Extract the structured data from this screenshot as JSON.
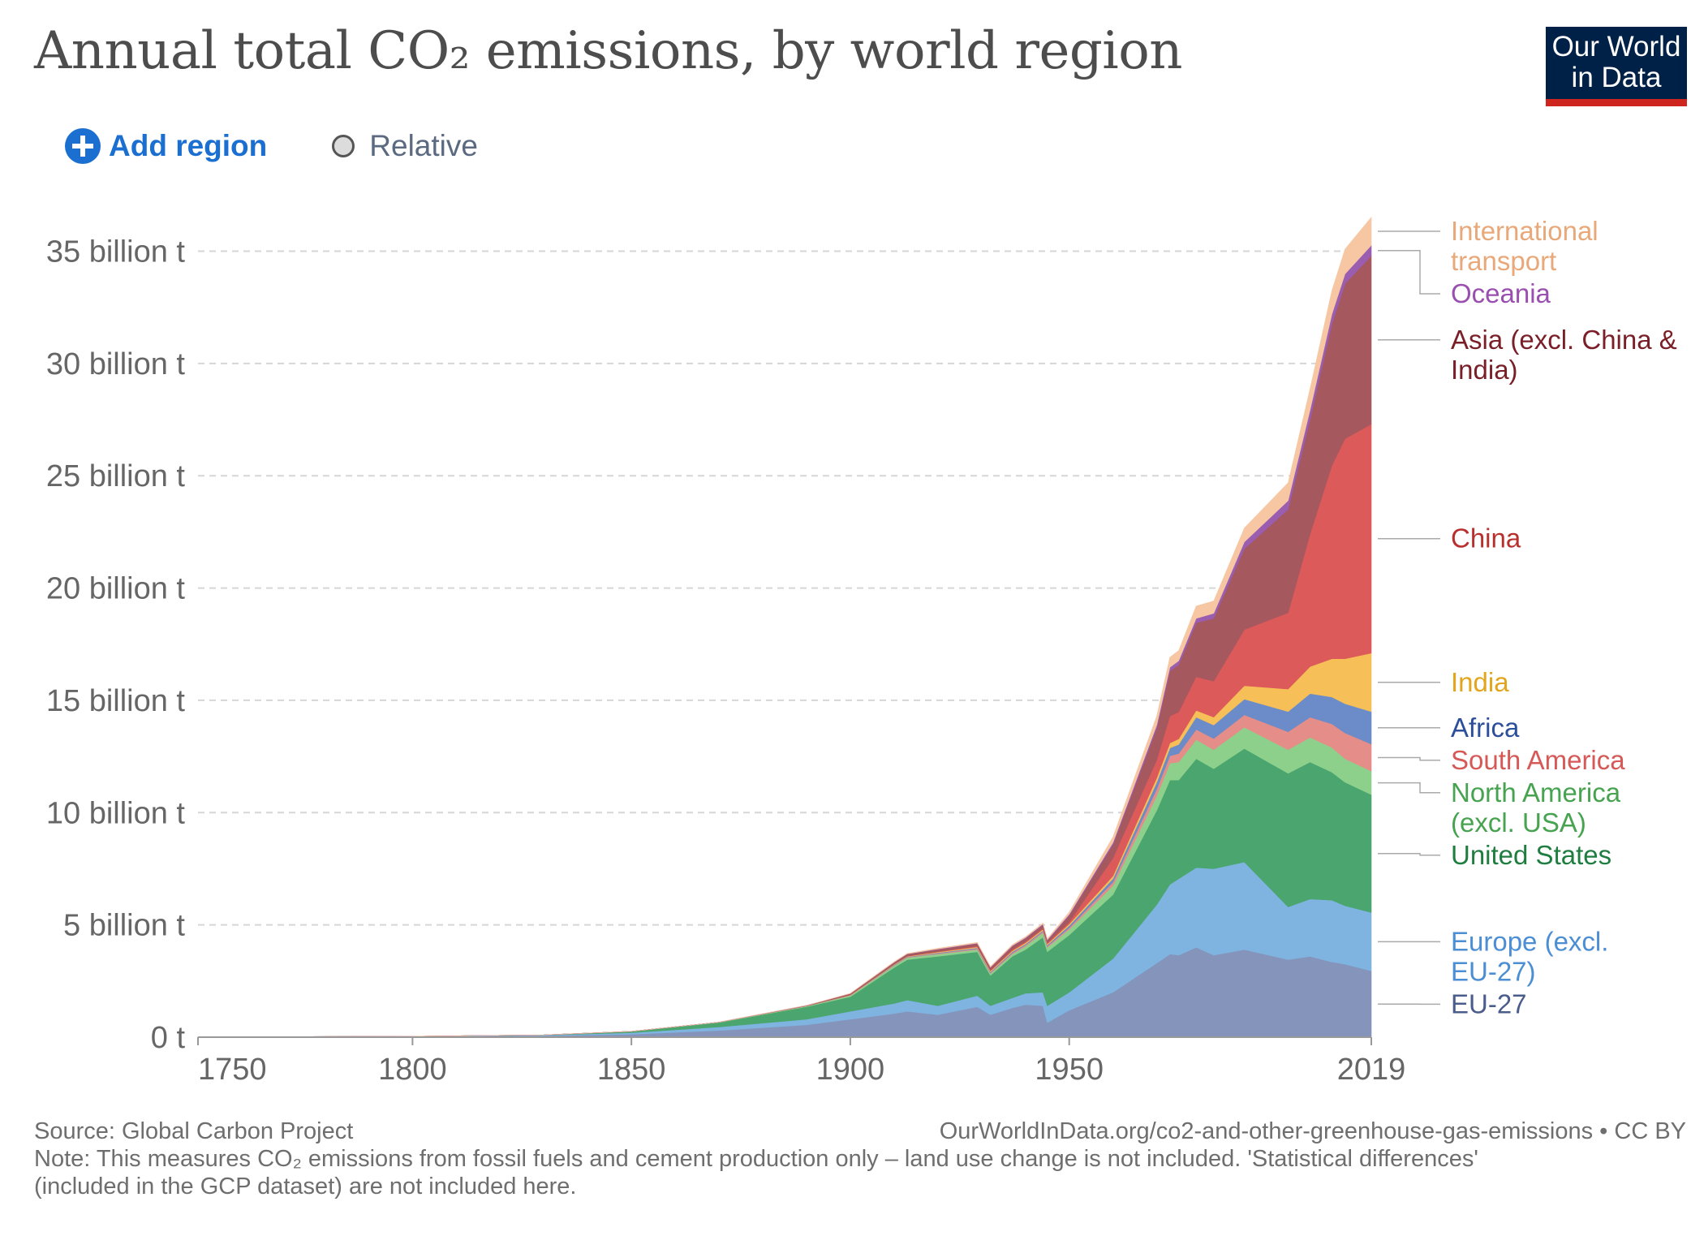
{
  "title": "Annual total CO₂ emissions, by world region",
  "logo": {
    "line1": "Our World",
    "line2": "in Data"
  },
  "controls": {
    "add_region_label": "Add region",
    "relative_label": "Relative"
  },
  "footer": {
    "source": "Source: Global Carbon Project",
    "url": "OurWorldInData.org/co2-and-other-greenhouse-gas-emissions • CC BY",
    "note": "Note: This measures CO₂ emissions from fossil fuels and cement production only – land use change is not included. 'Statistical differences' (included in the GCP dataset) are not included here."
  },
  "chart_data": {
    "type": "area",
    "stacked": true,
    "unit": "billion t",
    "ylim": [
      0,
      36.5
    ],
    "yticks": [
      0,
      5,
      10,
      15,
      20,
      25,
      30,
      35
    ],
    "ytick_labels": [
      "0 t",
      "5 billion t",
      "10 billion t",
      "15 billion t",
      "20 billion t",
      "25 billion t",
      "30 billion t",
      "35 billion t"
    ],
    "xlim": [
      1751,
      2019
    ],
    "xticks": [
      1750,
      1800,
      1850,
      1900,
      1950,
      2019
    ],
    "xtick_labels": [
      "1750",
      "1800",
      "1850",
      "1900",
      "1950",
      "2019"
    ],
    "grid": true,
    "legend_position": "right, labels at series ends",
    "x": [
      1751,
      1800,
      1830,
      1850,
      1870,
      1890,
      1900,
      1910,
      1913,
      1920,
      1929,
      1932,
      1937,
      1940,
      1944,
      1945,
      1950,
      1960,
      1970,
      1973,
      1975,
      1979,
      1983,
      1990,
      2000,
      2005,
      2010,
      2013,
      2019
    ],
    "series": [
      {
        "name": "EU-27",
        "color": "#8594bb",
        "values": [
          0.01,
          0.03,
          0.06,
          0.13,
          0.3,
          0.55,
          0.8,
          1.05,
          1.15,
          1.0,
          1.35,
          1.0,
          1.3,
          1.45,
          1.4,
          0.65,
          1.2,
          2.0,
          3.3,
          3.7,
          3.65,
          4.0,
          3.65,
          3.9,
          3.45,
          3.6,
          3.35,
          3.25,
          2.95
        ]
      },
      {
        "name": "Europe (excl. EU-27)",
        "color": "#7fb4e0",
        "values": [
          0.002,
          0.01,
          0.03,
          0.07,
          0.15,
          0.25,
          0.35,
          0.45,
          0.5,
          0.4,
          0.5,
          0.4,
          0.45,
          0.5,
          0.6,
          0.75,
          0.8,
          1.5,
          2.6,
          3.1,
          3.4,
          3.55,
          3.85,
          3.9,
          2.35,
          2.55,
          2.75,
          2.6,
          2.6
        ]
      },
      {
        "name": "United States",
        "color": "#4aa56e",
        "values": [
          0.0,
          0.0,
          0.01,
          0.05,
          0.2,
          0.55,
          0.65,
          1.6,
          1.8,
          2.2,
          1.95,
          1.35,
          1.85,
          1.95,
          2.45,
          2.4,
          2.55,
          2.85,
          4.2,
          4.65,
          4.4,
          4.85,
          4.45,
          5.05,
          5.95,
          6.1,
          5.7,
          5.5,
          5.25
        ]
      },
      {
        "name": "North America (excl. USA)",
        "color": "#8dd08c",
        "values": [
          0.0,
          0.0,
          0.0,
          0.01,
          0.02,
          0.03,
          0.05,
          0.08,
          0.09,
          0.1,
          0.1,
          0.08,
          0.1,
          0.15,
          0.2,
          0.2,
          0.25,
          0.4,
          0.65,
          0.75,
          0.8,
          0.85,
          0.85,
          0.95,
          1.05,
          1.1,
          1.1,
          1.05,
          1.05
        ]
      },
      {
        "name": "South America",
        "color": "#e58d88",
        "values": [
          0.0,
          0.0,
          0.0,
          0.0,
          0.0,
          0.005,
          0.01,
          0.02,
          0.02,
          0.03,
          0.04,
          0.04,
          0.05,
          0.05,
          0.05,
          0.05,
          0.07,
          0.16,
          0.3,
          0.33,
          0.38,
          0.45,
          0.5,
          0.55,
          0.8,
          0.9,
          1.05,
          1.15,
          1.2
        ]
      },
      {
        "name": "Africa",
        "color": "#6b8cc8",
        "values": [
          0.0,
          0.0,
          0.0,
          0.0,
          0.0,
          0.002,
          0.01,
          0.02,
          0.02,
          0.03,
          0.04,
          0.04,
          0.05,
          0.05,
          0.05,
          0.05,
          0.1,
          0.15,
          0.3,
          0.35,
          0.4,
          0.55,
          0.6,
          0.7,
          0.9,
          1.05,
          1.2,
          1.3,
          1.45
        ]
      },
      {
        "name": "India",
        "color": "#f6bf57",
        "values": [
          0.0,
          0.0,
          0.0,
          0.0,
          0.0,
          0.005,
          0.01,
          0.02,
          0.02,
          0.03,
          0.04,
          0.04,
          0.05,
          0.05,
          0.05,
          0.05,
          0.07,
          0.12,
          0.2,
          0.22,
          0.25,
          0.3,
          0.35,
          0.6,
          1.0,
          1.2,
          1.7,
          2.0,
          2.6
        ]
      },
      {
        "name": "China",
        "color": "#dc5a5a",
        "values": [
          0.0,
          0.0,
          0.0,
          0.0,
          0.0,
          0.0,
          0.005,
          0.01,
          0.01,
          0.02,
          0.03,
          0.03,
          0.05,
          0.05,
          0.05,
          0.05,
          0.08,
          0.8,
          0.8,
          1.2,
          1.2,
          1.5,
          1.6,
          2.5,
          3.4,
          5.9,
          8.6,
          9.8,
          10.2
        ]
      },
      {
        "name": "Asia (excl. China & India)",
        "color": "#a6585f",
        "values": [
          0.0,
          0.0,
          0.0,
          0.0,
          0.0,
          0.02,
          0.05,
          0.08,
          0.09,
          0.1,
          0.12,
          0.12,
          0.15,
          0.15,
          0.15,
          0.1,
          0.3,
          0.6,
          1.4,
          2.0,
          2.1,
          2.4,
          2.8,
          3.6,
          4.6,
          5.1,
          6.3,
          6.9,
          7.5
        ]
      },
      {
        "name": "Oceania",
        "color": "#9a5db0",
        "values": [
          0.0,
          0.0,
          0.0,
          0.0,
          0.0,
          0.0,
          0.01,
          0.01,
          0.01,
          0.02,
          0.02,
          0.02,
          0.03,
          0.03,
          0.04,
          0.04,
          0.05,
          0.09,
          0.15,
          0.17,
          0.18,
          0.2,
          0.22,
          0.3,
          0.39,
          0.42,
          0.44,
          0.44,
          0.46
        ]
      },
      {
        "name": "International transport",
        "color": "#f7c7a4",
        "values": [
          0.0,
          0.0,
          0.0,
          0.0,
          0.0,
          0.0,
          0.01,
          0.02,
          0.02,
          0.03,
          0.03,
          0.03,
          0.04,
          0.04,
          0.04,
          0.04,
          0.1,
          0.25,
          0.4,
          0.45,
          0.45,
          0.55,
          0.55,
          0.62,
          0.8,
          0.95,
          1.05,
          1.1,
          1.25
        ]
      }
    ],
    "legend_labels": [
      {
        "series": "International transport",
        "lines": [
          "International",
          "transport"
        ],
        "color": "#e8a879"
      },
      {
        "series": "Oceania",
        "lines": [
          "Oceania"
        ],
        "color": "#9a4fb0"
      },
      {
        "series": "Asia (excl. China & India)",
        "lines": [
          "Asia (excl. China &",
          "India)"
        ],
        "color": "#7a1f28"
      },
      {
        "series": "China",
        "lines": [
          "China"
        ],
        "color": "#b8302e"
      },
      {
        "series": "India",
        "lines": [
          "India"
        ],
        "color": "#e3a51b"
      },
      {
        "series": "Africa",
        "lines": [
          "Africa"
        ],
        "color": "#2c4e9b"
      },
      {
        "series": "South America",
        "lines": [
          "South America"
        ],
        "color": "#d55a57"
      },
      {
        "series": "North America (excl. USA)",
        "lines": [
          "North America",
          "(excl. USA)"
        ],
        "color": "#48a350"
      },
      {
        "series": "United States",
        "lines": [
          "United States"
        ],
        "color": "#1f7d3f"
      },
      {
        "series": "Europe (excl. EU-27)",
        "lines": [
          "Europe (excl.",
          "EU-27)"
        ],
        "color": "#4b8ed3"
      },
      {
        "series": "EU-27",
        "lines": [
          "EU-27"
        ],
        "color": "#4a5c8c"
      }
    ]
  }
}
